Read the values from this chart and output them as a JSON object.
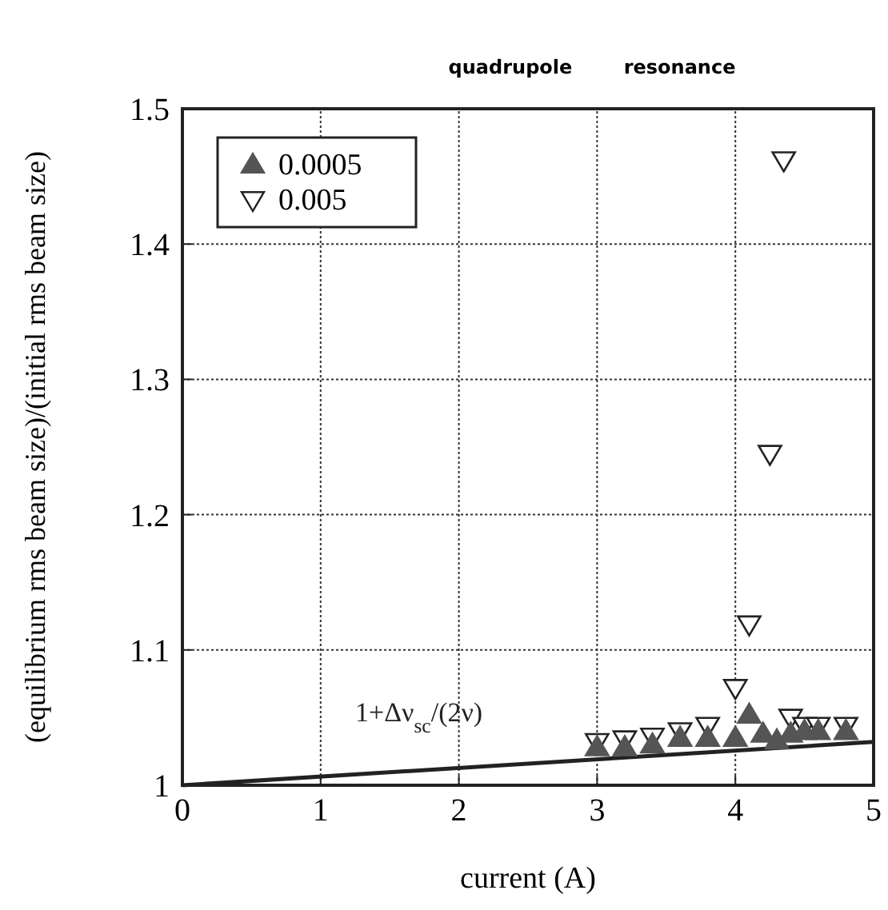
{
  "chart_data": {
    "type": "scatter",
    "xlabel": "current (A)",
    "ylabel": "(equilibrium rms beam size)/(initial rms beam size)",
    "annotations": [
      "quadrupole resonance"
    ],
    "xlim": [
      0,
      5
    ],
    "xticks": [
      0,
      1,
      2,
      3,
      4,
      5
    ],
    "ylim": [
      1,
      1.5
    ],
    "yticks": [
      1,
      1.1,
      1.2,
      1.3,
      1.4,
      1.5
    ],
    "grid": true,
    "legend": "top left",
    "series": [
      {
        "name": "0.0005",
        "color": "#555555",
        "marker": "triangle",
        "x": [
          3.0,
          3.2,
          3.4,
          3.6,
          3.8,
          4.0,
          4.1,
          4.2,
          4.3,
          4.4,
          4.5,
          4.6,
          4.8
        ],
        "values": [
          1.028,
          1.028,
          1.03,
          1.035,
          1.035,
          1.035,
          1.052,
          1.038,
          1.033,
          1.038,
          1.04,
          1.04,
          1.04
        ]
      },
      {
        "name": "0.005",
        "color": "#222222",
        "marker": "triangle-down-open",
        "x": [
          3.0,
          3.2,
          3.4,
          3.6,
          3.8,
          4.0,
          4.1,
          4.25,
          4.35,
          4.4,
          4.5,
          4.6,
          4.8
        ],
        "values": [
          1.032,
          1.034,
          1.036,
          1.04,
          1.044,
          1.072,
          1.119,
          1.245,
          1.462,
          1.05,
          1.044,
          1.044,
          1.044
        ]
      },
      {
        "name": "1+Δν$_{sc}$/(2ν)",
        "type": "line",
        "color": "#222222",
        "x": [
          0,
          5
        ],
        "values": [
          1,
          1.032
        ]
      }
    ]
  }
}
